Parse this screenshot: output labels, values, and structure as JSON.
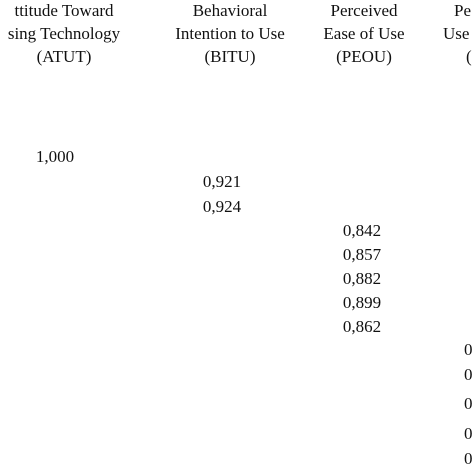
{
  "table": {
    "headers": [
      [
        "ttitude Toward",
        "sing Technology",
        "(ATUT)"
      ],
      [
        "Behavioral",
        "Intention to Use",
        "(BITU)"
      ],
      [
        "Perceived",
        "Ease of Use",
        "(PEOU)"
      ],
      [
        "Pe",
        "Use",
        "("
      ]
    ],
    "rows": [
      [
        "1,000",
        null,
        null,
        null
      ],
      [
        null,
        "0,921",
        null,
        null
      ],
      [
        null,
        "0,924",
        null,
        null
      ],
      [
        null,
        null,
        "0,842",
        null
      ],
      [
        null,
        null,
        "0,857",
        null
      ],
      [
        null,
        null,
        "0,882",
        null
      ],
      [
        null,
        null,
        "0,899",
        null
      ],
      [
        null,
        null,
        "0,862",
        null
      ],
      [
        null,
        null,
        null,
        "0"
      ],
      [
        null,
        null,
        null,
        "0"
      ],
      [
        null,
        null,
        null,
        "0"
      ],
      [
        null,
        null,
        null,
        "0"
      ],
      [
        null,
        null,
        null,
        "0"
      ]
    ]
  }
}
